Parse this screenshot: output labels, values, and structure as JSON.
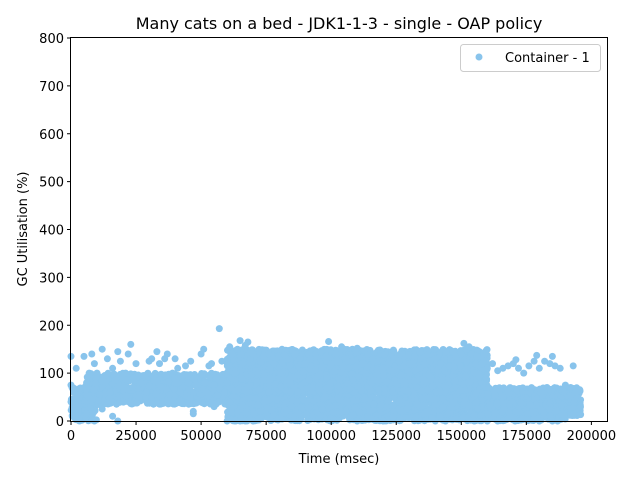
{
  "chart_data": {
    "type": "scatter",
    "title": "Many cats on a bed - JDK1-1-3 - single -  OAP policy",
    "xlabel": "Time (msec)",
    "ylabel": "GC Utilisation (%)",
    "xlim": [
      0,
      206000
    ],
    "ylim": [
      0,
      800
    ],
    "xticks": [
      0,
      25000,
      50000,
      75000,
      100000,
      125000,
      150000,
      175000,
      200000
    ],
    "xtick_labels": [
      "0",
      "25000",
      "50000",
      "75000",
      "100000",
      "125000",
      "150000",
      "175000",
      "200000"
    ],
    "yticks": [
      0,
      100,
      200,
      300,
      400,
      500,
      600,
      700,
      800
    ],
    "ytick_labels": [
      "0",
      "100",
      "200",
      "300",
      "400",
      "500",
      "600",
      "700",
      "800"
    ],
    "grid": false,
    "legend_position": "top-right",
    "series": [
      {
        "name": "Container - 1",
        "color": "#89c4ec",
        "points": [
          [
            0,
            135
          ],
          [
            0,
            75
          ],
          [
            0,
            40
          ],
          [
            500,
            10
          ],
          [
            1000,
            60
          ],
          [
            2000,
            110
          ],
          [
            3000,
            30
          ],
          [
            5000,
            135
          ],
          [
            6000,
            80
          ],
          [
            7000,
            100
          ],
          [
            8000,
            140
          ],
          [
            9000,
            120
          ],
          [
            10000,
            100
          ],
          [
            11000,
            55
          ],
          [
            12000,
            150
          ],
          [
            13000,
            95
          ],
          [
            14000,
            130
          ],
          [
            15000,
            60
          ],
          [
            16000,
            110
          ],
          [
            17000,
            85
          ],
          [
            18000,
            145
          ],
          [
            19000,
            125
          ],
          [
            20000,
            70
          ],
          [
            21000,
            100
          ],
          [
            22000,
            140
          ],
          [
            23000,
            160
          ],
          [
            24000,
            90
          ],
          [
            25000,
            120
          ],
          [
            26000,
            50
          ],
          [
            27000,
            80
          ],
          [
            28000,
            95
          ],
          [
            29000,
            60
          ],
          [
            30000,
            125
          ],
          [
            31000,
            130
          ],
          [
            32000,
            85
          ],
          [
            33000,
            145
          ],
          [
            34000,
            120
          ],
          [
            35000,
            70
          ],
          [
            36000,
            130
          ],
          [
            37000,
            140
          ],
          [
            38000,
            55
          ],
          [
            39000,
            100
          ],
          [
            40000,
            130
          ],
          [
            41000,
            110
          ],
          [
            42000,
            60
          ],
          [
            43000,
            95
          ],
          [
            44000,
            115
          ],
          [
            45000,
            80
          ],
          [
            46000,
            125
          ],
          [
            47000,
            20
          ],
          [
            48000,
            75
          ],
          [
            49000,
            40
          ],
          [
            50000,
            140
          ],
          [
            51000,
            150
          ],
          [
            52000,
            60
          ],
          [
            53000,
            115
          ],
          [
            54000,
            120
          ],
          [
            55000,
            35
          ],
          [
            56000,
            90
          ],
          [
            57000,
            193
          ],
          [
            58000,
            125
          ],
          [
            59000,
            60
          ],
          [
            60000,
            80
          ],
          [
            61000,
            155
          ],
          [
            62000,
            140
          ],
          [
            63000,
            100
          ],
          [
            64000,
            150
          ],
          [
            65000,
            168
          ],
          [
            66000,
            120
          ],
          [
            67000,
            158
          ],
          [
            68000,
            165
          ],
          [
            69000,
            130
          ],
          [
            70000,
            140
          ],
          [
            72000,
            100
          ],
          [
            74000,
            135
          ],
          [
            76000,
            140
          ],
          [
            78000,
            120
          ],
          [
            80000,
            135
          ],
          [
            82000,
            138
          ],
          [
            84000,
            115
          ],
          [
            86000,
            140
          ],
          [
            88000,
            130
          ],
          [
            90000,
            120
          ],
          [
            92000,
            130
          ],
          [
            94000,
            140
          ],
          [
            96000,
            145
          ],
          [
            98000,
            135
          ],
          [
            99000,
            166
          ],
          [
            100000,
            120
          ],
          [
            102000,
            140
          ],
          [
            104000,
            155
          ],
          [
            105000,
            150
          ],
          [
            106000,
            130
          ],
          [
            108000,
            125
          ],
          [
            110000,
            152
          ],
          [
            112000,
            120
          ],
          [
            114000,
            138
          ],
          [
            116000,
            130
          ],
          [
            118000,
            125
          ],
          [
            120000,
            110
          ],
          [
            122000,
            120
          ],
          [
            124000,
            130
          ],
          [
            126000,
            125
          ],
          [
            128000,
            115
          ],
          [
            130000,
            120
          ],
          [
            132000,
            135
          ],
          [
            134000,
            110
          ],
          [
            136000,
            120
          ],
          [
            138000,
            125
          ],
          [
            140000,
            130
          ],
          [
            142000,
            120
          ],
          [
            144000,
            145
          ],
          [
            146000,
            130
          ],
          [
            148000,
            135
          ],
          [
            150000,
            140
          ],
          [
            151000,
            162
          ],
          [
            152000,
            150
          ],
          [
            153000,
            155
          ],
          [
            154000,
            140
          ],
          [
            156000,
            135
          ],
          [
            158000,
            120
          ],
          [
            160000,
            110
          ],
          [
            162000,
            120
          ],
          [
            164000,
            105
          ],
          [
            166000,
            110
          ],
          [
            168000,
            115
          ],
          [
            170000,
            120
          ],
          [
            171000,
            128
          ],
          [
            172000,
            110
          ],
          [
            174000,
            100
          ],
          [
            176000,
            115
          ],
          [
            178000,
            125
          ],
          [
            179000,
            137
          ],
          [
            180000,
            110
          ],
          [
            182000,
            125
          ],
          [
            184000,
            120
          ],
          [
            185000,
            135
          ],
          [
            186000,
            115
          ],
          [
            188000,
            110
          ],
          [
            190000,
            75
          ],
          [
            192000,
            70
          ],
          [
            193000,
            115
          ],
          [
            194000,
            60
          ],
          [
            3000,
            5
          ],
          [
            6000,
            15
          ],
          [
            9000,
            0
          ],
          [
            12000,
            25
          ],
          [
            16000,
            10
          ],
          [
            18000,
            0
          ],
          [
            47000,
            15
          ],
          [
            55000,
            30
          ],
          [
            60000,
            0
          ],
          [
            63000,
            0
          ],
          [
            65000,
            0
          ],
          [
            67000,
            0
          ],
          [
            70000,
            0
          ],
          [
            110000,
            0
          ],
          [
            120000,
            0
          ],
          [
            140000,
            0
          ],
          [
            155000,
            0
          ],
          [
            160000,
            0
          ],
          [
            164000,
            0
          ],
          [
            168000,
            5
          ],
          [
            180000,
            0
          ],
          [
            185000,
            0
          ],
          [
            187000,
            0
          ]
        ],
        "bands": [
          {
            "x": [
              0,
              10000
            ],
            "y": [
              0,
              70
            ]
          },
          {
            "x": [
              5000,
              60000
            ],
            "y": [
              35,
              100
            ]
          },
          {
            "x": [
              60000,
              160000
            ],
            "y": [
              0,
              140
            ]
          },
          {
            "x": [
              60000,
              160000
            ],
            "y": [
              60,
              150
            ]
          },
          {
            "x": [
              155000,
              196000
            ],
            "y": [
              10,
              70
            ]
          },
          {
            "x": [
              160000,
              190000
            ],
            "y": [
              0,
              40
            ]
          }
        ]
      }
    ]
  }
}
